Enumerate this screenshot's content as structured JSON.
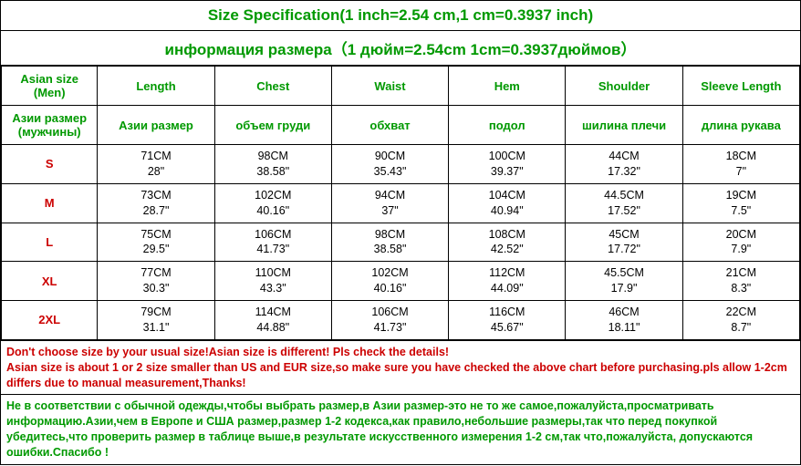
{
  "title_en": "Size Specification(1 inch=2.54 cm,1 cm=0.3937 inch)",
  "title_ru": "информация размера（1 дюйм=2.54cm 1cm=0.3937дюймов）",
  "title_color": "#009900",
  "title_fontsize": 17,
  "headers_en": [
    "Asian size (Men)",
    "Length",
    "Chest",
    "Waist",
    "Hem",
    "Shoulder",
    "Sleeve Length"
  ],
  "headers_ru": [
    "Азии размер (мужчины)",
    "Азии размер",
    "объем груди",
    "обхват",
    "подол",
    "шилина плечи",
    "длина рукава"
  ],
  "header_color": "#009900",
  "size_label_color": "#cc0000",
  "cell_text_color": "#000000",
  "border_color": "#000000",
  "background_color": "#ffffff",
  "rows": [
    {
      "size": "S",
      "cells": [
        {
          "cm": "71CM",
          "in": "28\""
        },
        {
          "cm": "98CM",
          "in": "38.58\""
        },
        {
          "cm": "90CM",
          "in": "35.43\""
        },
        {
          "cm": "100CM",
          "in": "39.37\""
        },
        {
          "cm": "44CM",
          "in": "17.32\""
        },
        {
          "cm": "18CM",
          "in": "7\""
        }
      ]
    },
    {
      "size": "M",
      "cells": [
        {
          "cm": "73CM",
          "in": "28.7\""
        },
        {
          "cm": "102CM",
          "in": "40.16\""
        },
        {
          "cm": "94CM",
          "in": "37\""
        },
        {
          "cm": "104CM",
          "in": "40.94\""
        },
        {
          "cm": "44.5CM",
          "in": "17.52\""
        },
        {
          "cm": "19CM",
          "in": "7.5\""
        }
      ]
    },
    {
      "size": "L",
      "cells": [
        {
          "cm": "75CM",
          "in": "29.5\""
        },
        {
          "cm": "106CM",
          "in": "41.73\""
        },
        {
          "cm": "98CM",
          "in": "38.58\""
        },
        {
          "cm": "108CM",
          "in": "42.52\""
        },
        {
          "cm": "45CM",
          "in": "17.72\""
        },
        {
          "cm": "20CM",
          "in": "7.9\""
        }
      ]
    },
    {
      "size": "XL",
      "cells": [
        {
          "cm": "77CM",
          "in": "30.3\""
        },
        {
          "cm": "110CM",
          "in": "43.3\""
        },
        {
          "cm": "102CM",
          "in": "40.16\""
        },
        {
          "cm": "112CM",
          "in": "44.09\""
        },
        {
          "cm": "45.5CM",
          "in": "17.9\""
        },
        {
          "cm": "21CM",
          "in": "8.3\""
        }
      ]
    },
    {
      "size": "2XL",
      "cells": [
        {
          "cm": "79CM",
          "in": "31.1\""
        },
        {
          "cm": "114CM",
          "in": "44.88\""
        },
        {
          "cm": "106CM",
          "in": "41.73\""
        },
        {
          "cm": "116CM",
          "in": "45.67\""
        },
        {
          "cm": "46CM",
          "in": "18.11\""
        },
        {
          "cm": "22CM",
          "in": "8.7\""
        }
      ]
    }
  ],
  "note_en": "Don't choose size by your usual size!Asian size is different! Pls check the details!\nAsian size is about 1 or 2 size smaller than US and EUR size,so make sure you have checked the above chart before purchasing.pls allow 1-2cm differs due to manual measurement,Thanks!",
  "note_ru": "Не в соответствии с обычной одежды,чтобы выбрать размер,в Азии размер-это не то же самое,пожалуйста,просматривать информацию.Азии,чем в Европе и США размер,размер 1-2 кодекса,как правило,небольшие размеры,так что перед покупкой убедитесь,что проверить размер в таблице выше,в результате искусственного измерения 1-2 см,так что,пожалуйста, допускаются ошибки.Спасибо !",
  "note_en_color": "#cc0000",
  "note_ru_color": "#009900"
}
